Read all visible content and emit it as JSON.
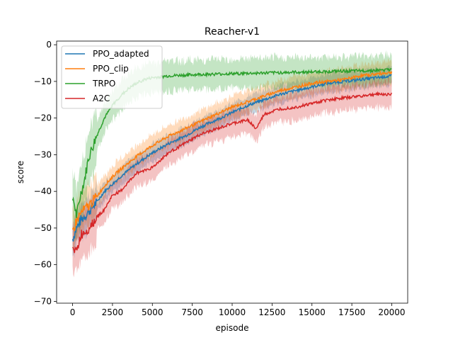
{
  "chart_data": {
    "type": "line",
    "title": "Reacher-v1",
    "xlabel": "episode",
    "ylabel": "score",
    "xlim": [
      -1000,
      21000
    ],
    "ylim": [
      -70.5,
      1
    ],
    "xticks": [
      0,
      2500,
      5000,
      7500,
      10000,
      12500,
      15000,
      17500,
      20000
    ],
    "yticks": [
      0,
      -10,
      -20,
      -30,
      -40,
      -50,
      -60,
      -70
    ],
    "ytick_labels": [
      "0",
      "−10",
      "−20",
      "−30",
      "−40",
      "−50",
      "−60",
      "−70"
    ],
    "legend_position": "upper-left",
    "grid": false,
    "series": [
      {
        "name": "PPO_adapted",
        "color": "#1f77b4",
        "x": [
          0,
          250,
          500,
          1000,
          1500,
          2000,
          2500,
          3000,
          4000,
          5000,
          6000,
          7000,
          8000,
          9000,
          10000,
          11000,
          12000,
          13000,
          14000,
          15000,
          16000,
          17000,
          18000,
          19000,
          20000
        ],
        "mean": [
          -53,
          -50,
          -48,
          -45.5,
          -43,
          -40,
          -38,
          -36,
          -32.5,
          -29.5,
          -27,
          -25,
          -22.5,
          -20.5,
          -18.5,
          -16.5,
          -15,
          -13.5,
          -12.5,
          -11.5,
          -10.5,
          -10,
          -9.5,
          -9,
          -8.5
        ],
        "band": 2.5
      },
      {
        "name": "PPO_clip",
        "color": "#ff7f0e",
        "x": [
          0,
          250,
          500,
          1000,
          1500,
          2000,
          2500,
          3000,
          4000,
          5000,
          6000,
          7000,
          8000,
          9000,
          10000,
          11000,
          12000,
          13000,
          14000,
          15000,
          16000,
          17000,
          18000,
          19000,
          20000
        ],
        "mean": [
          -51,
          -48,
          -46,
          -44,
          -41.5,
          -38.5,
          -36,
          -34,
          -30.5,
          -27.5,
          -25,
          -23,
          -21,
          -19,
          -17,
          -15.5,
          -14,
          -12.5,
          -11.5,
          -10.5,
          -10,
          -9.5,
          -8.5,
          -8,
          -7.5
        ],
        "band": 3
      },
      {
        "name": "TRPO",
        "color": "#2ca02c",
        "x": [
          0,
          250,
          500,
          750,
          1000,
          1250,
          1500,
          2000,
          2500,
          3000,
          3500,
          4000,
          4500,
          5000,
          6000,
          7000,
          8000,
          9000,
          10000,
          11000,
          12000,
          13000,
          14000,
          15000,
          16000,
          17000,
          18000,
          19000,
          20000
        ],
        "mean": [
          -41,
          -47,
          -41,
          -37,
          -31,
          -28,
          -25,
          -20,
          -16.5,
          -14,
          -12,
          -10.5,
          -9.5,
          -9,
          -8.5,
          -8.3,
          -8.1,
          -8,
          -7.9,
          -7.8,
          -7.7,
          -7.6,
          -7.5,
          -7.4,
          -7.3,
          -7.2,
          -7.1,
          -7,
          -6.8
        ],
        "band": 4
      },
      {
        "name": "A2C",
        "color": "#d62728",
        "x": [
          0,
          250,
          500,
          1000,
          1500,
          2000,
          2500,
          3000,
          4000,
          5000,
          6000,
          7000,
          8000,
          9000,
          10000,
          11000,
          11500,
          12000,
          13000,
          14000,
          15000,
          16000,
          17000,
          18000,
          19000,
          20000
        ],
        "mean": [
          -54,
          -57,
          -52,
          -50,
          -47,
          -45,
          -41,
          -40,
          -35,
          -33.5,
          -29.5,
          -27,
          -24.5,
          -23,
          -21.5,
          -20.5,
          -23,
          -19,
          -17.5,
          -17,
          -16,
          -15,
          -14.5,
          -14,
          -13.5,
          -13.5
        ],
        "band": 3.5
      }
    ]
  }
}
